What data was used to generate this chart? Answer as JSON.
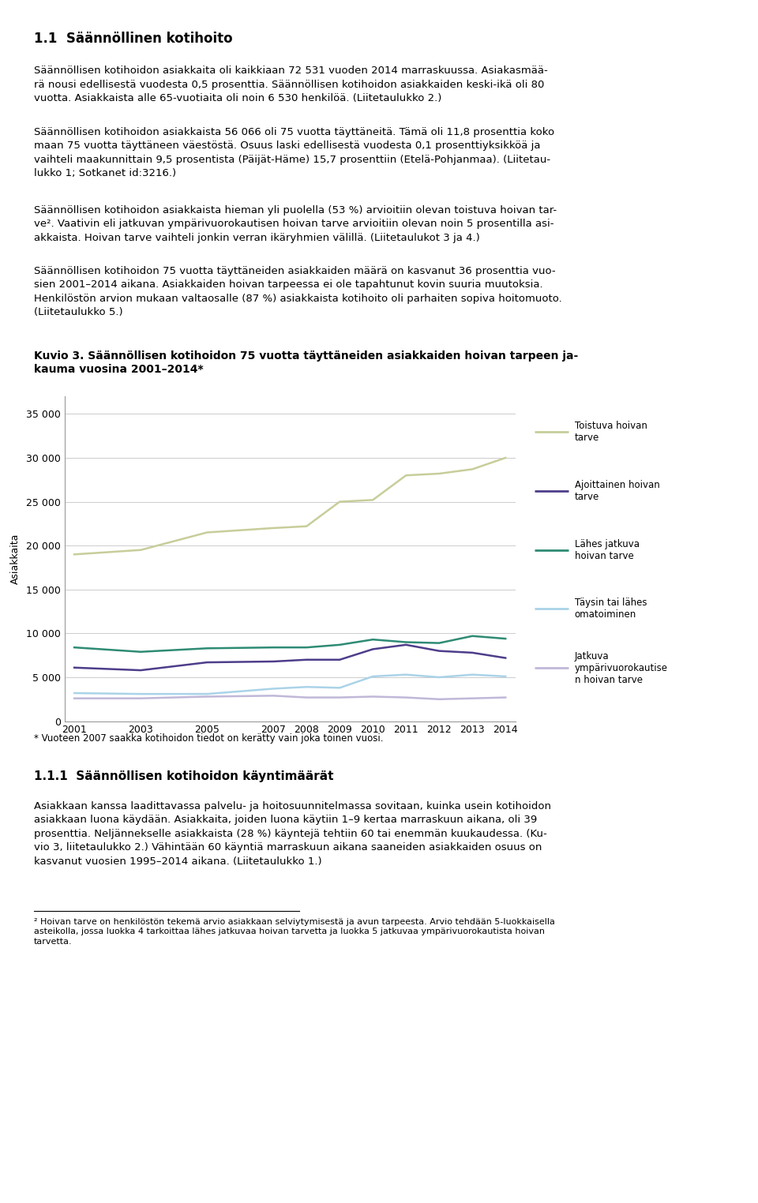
{
  "figure_title": "Kuvio 3. Säännöllisen kotihoidon 75 vuotta täyttäneiden asiakkaiden hoivan tarpeen ja-\nkauma vuosina 2001–2014*",
  "footnote_chart": "* Vuoteen 2007 saakka kotihoidon tiedot on kerätty vain joka toinen vuosi.",
  "ylabel": "Asiakkaita",
  "years": [
    2001,
    2003,
    2005,
    2007,
    2008,
    2009,
    2010,
    2011,
    2012,
    2013,
    2014
  ],
  "series": [
    {
      "label": "Toistuva hoivan\ntarve",
      "color": "#c8cd9a",
      "values": [
        19000,
        19500,
        21500,
        22000,
        22200,
        25000,
        25200,
        28000,
        28200,
        28700,
        30000
      ]
    },
    {
      "label": "Ajoittainen hoivan\ntarve",
      "color": "#4e3d8a",
      "values": [
        6100,
        5800,
        6700,
        6800,
        7000,
        7000,
        8200,
        8700,
        8000,
        7800,
        7200
      ]
    },
    {
      "label": "Lähes jatkuva\nhoivan tarve",
      "color": "#2e8b74",
      "values": [
        8400,
        7900,
        8300,
        8400,
        8400,
        8700,
        9300,
        9000,
        8900,
        9700,
        9400
      ]
    },
    {
      "label": "Täysin tai lähes\nomatoiminen",
      "color": "#aad3e8",
      "values": [
        3200,
        3100,
        3100,
        3700,
        3900,
        3800,
        5100,
        5300,
        5000,
        5300,
        5100
      ]
    },
    {
      "label": "Jatkuva\nympärivuorokautise\nn hoivan tarve",
      "color": "#c0b8d8",
      "values": [
        2600,
        2600,
        2800,
        2900,
        2700,
        2700,
        2800,
        2700,
        2500,
        2600,
        2700
      ]
    }
  ],
  "ylim": [
    0,
    37000
  ],
  "yticks": [
    0,
    5000,
    10000,
    15000,
    20000,
    25000,
    30000,
    35000
  ],
  "grid_color": "#cccccc",
  "axis_fontsize": 9,
  "legend_fontsize": 8.5,
  "heading1": "1.1  Säännöllinen kotihoito",
  "para1": "Säännöllisen kotihoidon asiakkaita oli kaikkiaan 72 531 vuoden 2014 marraskuussa. Asiakasmää-\nrä nousi edellisestä vuodesta 0,5 prosenttia. Säännöllisen kotihoidon asiakkaiden keski-ikä oli 80\nvuotta. Asiakkaista alle 65-vuotiaita oli noin 6 530 henkilöä. (Liitetaulukko 2.)",
  "para2": "Säännöllisen kotihoidon asiakkaista 56 066 oli 75 vuotta täyttäneitä. Tämä oli 11,8 prosenttia koko\nmaan 75 vuotta täyttäneen väestöstä. Osuus laski edellisestä vuodesta 0,1 prosenttiyksikköä ja\nvaihteli maakunnittain 9,5 prosentista (Päijät-Häme) 15,7 prosenttiin (Etelä-Pohjanmaa). (Liitetau-\nlukko 1; Sotkanet id:3216.)",
  "para3": "Säännöllisen kotihoidon asiakkaista hieman yli puolella (53 %) arvioitiin olevan toistuva hoivan tar-\nve². Vaativin eli jatkuvan ympärivuorokautisen hoivan tarve arvioitiin olevan noin 5 prosentilla asi-\nakkaista. Hoivan tarve vaihteli jonkin verran ikäryhmien välillä. (Liitetaulukot 3 ja 4.)",
  "para4": "Säännöllisen kotihoidon 75 vuotta täyttäneiden asiakkaiden määrä on kasvanut 36 prosenttia vuo-\nsien 2001–2014 aikana. Asiakkaiden hoivan tarpeessa ei ole tapahtunut kovin suuria muutoksia.\nHenkilöstön arvion mukaan valtaosalle (87 %) asiakkaista kotihoito oli parhaiten sopiva hoitomuoto.\n(Liitetaulukko 5.)",
  "heading2": "1.1.1  Säännöllisen kotihoidon käyntimäärät",
  "para5": "Asiakkaan kanssa laadittavassa palvelu- ja hoitosuunnitelmassa sovitaan, kuinka usein kotihoidon\nasiakkaan luona käydään. Asiakkaita, joiden luona käytiin 1–9 kertaa marraskuun aikana, oli 39\nprosenttia. Neljännekselle asiakkaista (28 %) käyntejä tehtiin 60 tai enemmän kuukaudessa. (Ku-\nvio 3, liitetaulukko 2.) Vähintään 60 käyntiä marraskuun aikana saaneiden asiakkaiden osuus on\nkasvanut vuosien 1995–2014 aikana. (Liitetaulukko 1.)",
  "footnote2": "² Hoivan tarve on henkilöstön tekemä arvio asiakkaan selviytymisestä ja avun tarpeesta. Arvio tehdään 5-luokkaisella\nasteikolla, jossa luokka 4 tarkoittaa lähes jatkuvaa hoivan tarvetta ja luokka 5 jatkuvaa ympärivuorokautista hoivan\ntarvetta."
}
